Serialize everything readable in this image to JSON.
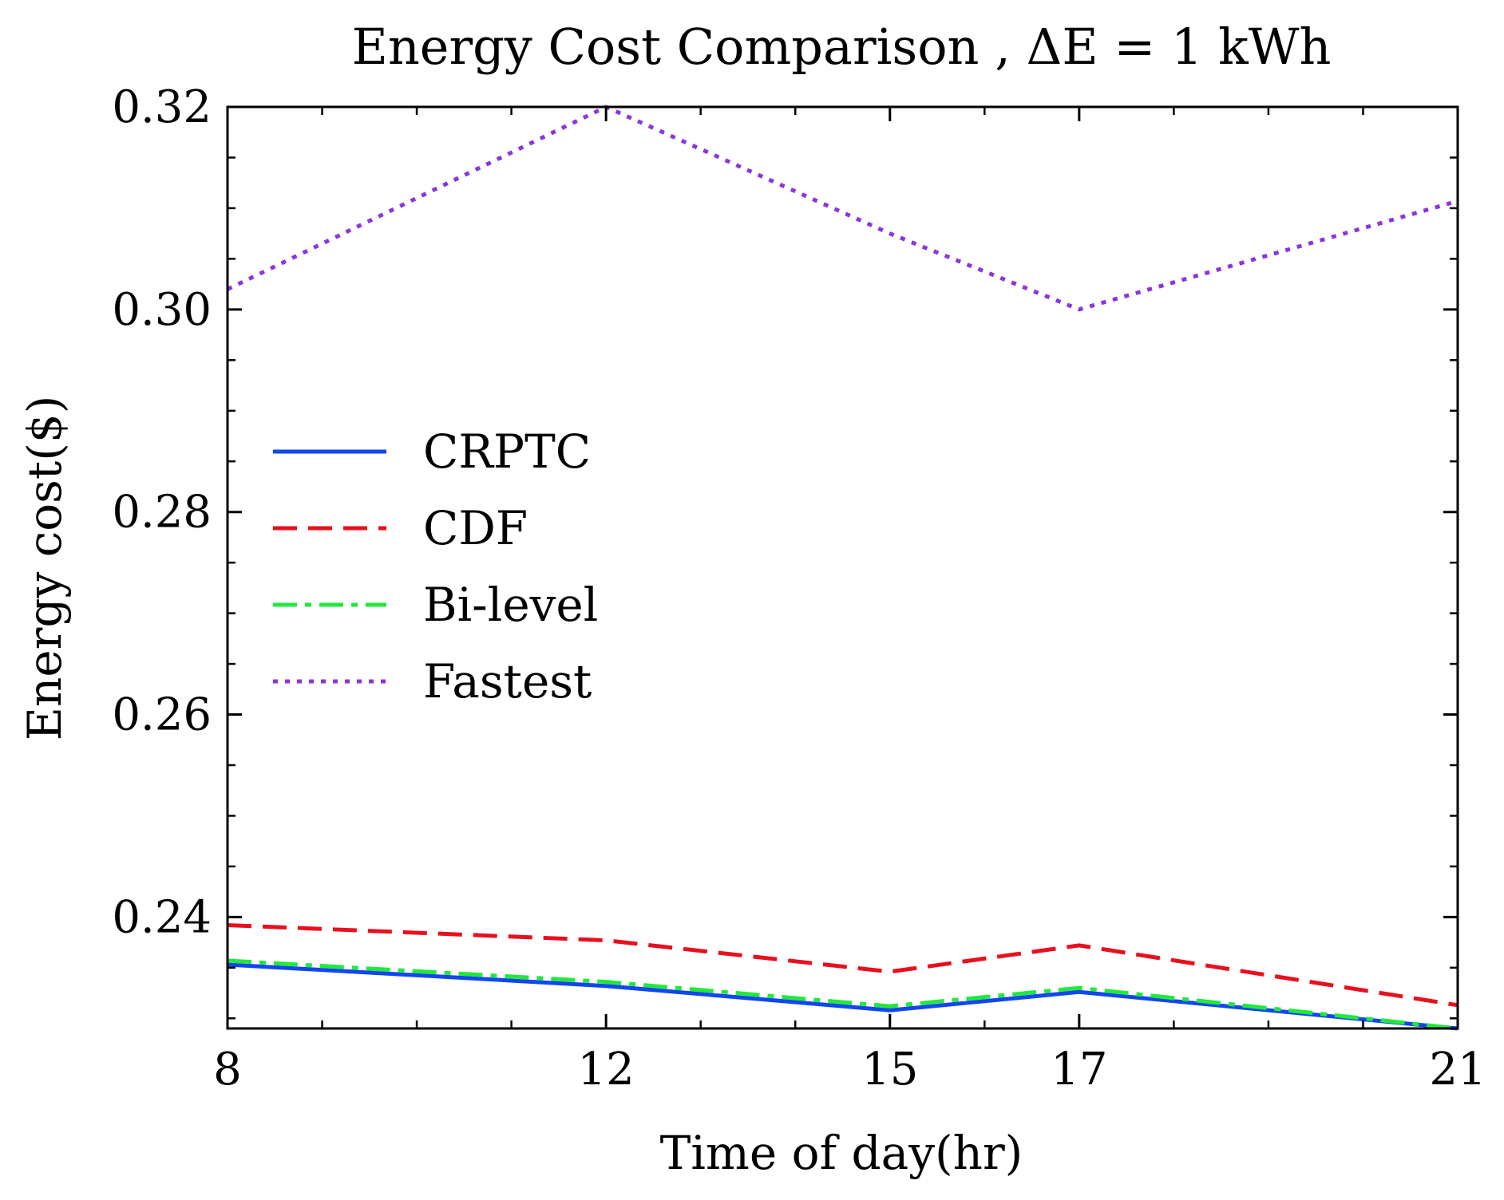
{
  "chart_data": {
    "type": "line",
    "title": "Energy Cost Comparison , ΔE = 1 kWh",
    "xlabel": "Time of day(hr)",
    "ylabel": "Energy cost($)",
    "x": [
      8,
      12,
      15,
      17,
      21
    ],
    "x_tick_labels": [
      "8",
      "12",
      "15",
      "17",
      "21"
    ],
    "xlim": [
      8,
      21
    ],
    "ylim": [
      0.229,
      0.32
    ],
    "y_ticks": [
      0.24,
      0.26,
      0.28,
      0.3,
      0.32
    ],
    "y_tick_labels": [
      "0.24",
      "0.26",
      "0.28",
      "0.30",
      "0.32"
    ],
    "grid": false,
    "legend_position": "center-left",
    "series": [
      {
        "name": "CRPTC",
        "values": [
          0.2353,
          0.2332,
          0.2308,
          0.2326,
          0.229
        ],
        "color": "#1147ee",
        "style": "solid"
      },
      {
        "name": "CDF",
        "values": [
          0.2392,
          0.2377,
          0.2346,
          0.2372,
          0.2313
        ],
        "color": "#e8101f",
        "style": "dashed"
      },
      {
        "name": "Bi-level",
        "values": [
          0.2357,
          0.2336,
          0.2312,
          0.233,
          0.229
        ],
        "color": "#22e83e",
        "style": "dashdot"
      },
      {
        "name": "Fastest",
        "values": [
          0.302,
          0.32,
          0.3075,
          0.3,
          0.3107
        ],
        "color": "#8a35e0",
        "style": "dotted"
      }
    ]
  }
}
